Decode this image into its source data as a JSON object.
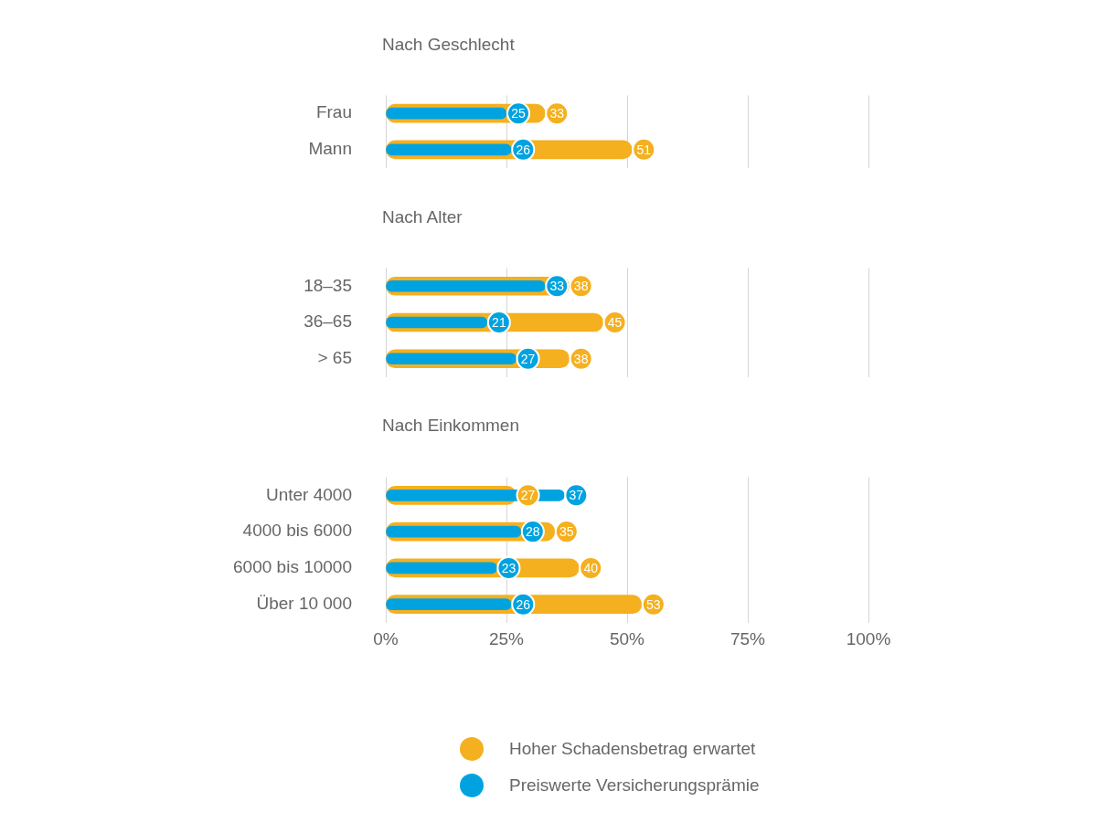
{
  "chart_data": [
    {
      "type": "bar",
      "orientation": "horizontal",
      "title": "Nach Geschlecht",
      "categories": [
        "Frau",
        "Mann"
      ],
      "series": [
        {
          "color": "#f5b01f",
          "values": [
            33,
            51
          ]
        },
        {
          "color": "#00a3e0",
          "values": [
            25,
            26
          ]
        }
      ],
      "xlim": [
        0,
        100
      ],
      "xticks": [
        {
          "value": 0,
          "label": null
        },
        {
          "value": 25,
          "label": null
        },
        {
          "value": 50,
          "label": null
        },
        {
          "value": 75,
          "label": null
        },
        {
          "value": 100,
          "label": null
        }
      ],
      "grid": "x",
      "tick_labels": "y",
      "data_labels": true
    },
    {
      "type": "bar",
      "orientation": "horizontal",
      "title": "Nach Alter",
      "categories": [
        "18–35",
        "36–65",
        "> 65"
      ],
      "series": [
        {
          "color": "#f5b01f",
          "values": [
            38,
            45,
            38
          ]
        },
        {
          "color": "#00a3e0",
          "values": [
            33,
            21,
            27
          ]
        }
      ],
      "xlim": [
        0,
        100
      ],
      "xticks": [
        {
          "value": 0,
          "label": null
        },
        {
          "value": 25,
          "label": null
        },
        {
          "value": 50,
          "label": null
        },
        {
          "value": 75,
          "label": null
        },
        {
          "value": 100,
          "label": null
        }
      ],
      "grid": "x",
      "tick_labels": "y",
      "data_labels": true
    },
    {
      "type": "bar",
      "orientation": "horizontal",
      "title": "Nach Einkommen",
      "categories": [
        "Unter 4000",
        "4000 bis 6000",
        "6000 bis 10000",
        "Über 10 000"
      ],
      "series": [
        {
          "name": "Hoher Schadensbetrag erwartet",
          "color": "#f5b01f",
          "values": [
            27,
            35,
            40,
            53
          ]
        },
        {
          "name": "Preiswerte Versicherungsprämie",
          "color": "#00a3e0",
          "values": [
            37,
            28,
            23,
            26
          ]
        }
      ],
      "xlim": [
        0,
        100
      ],
      "xticks": [
        {
          "value": 0,
          "label": "0%"
        },
        {
          "value": 25,
          "label": "25%"
        },
        {
          "value": 50,
          "label": "50%"
        },
        {
          "value": 75,
          "label": "75%"
        },
        {
          "value": 100,
          "label": "100%"
        }
      ],
      "grid": "x",
      "data_labels": true,
      "legend": "bottom"
    }
  ]
}
